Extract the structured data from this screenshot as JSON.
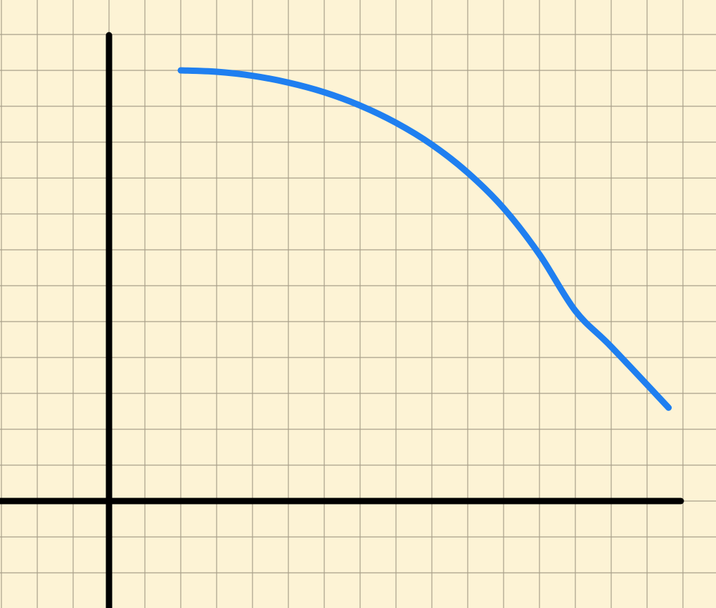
{
  "chart_data": {
    "type": "line",
    "title": "",
    "xlabel": "",
    "ylabel": "",
    "grid": true,
    "grid_step": 1,
    "xlim": [
      -3,
      16
    ],
    "ylim": [
      -3,
      14
    ],
    "axes_at_origin": true,
    "series": [
      {
        "color": "#1f7ff0",
        "x": [
          2,
          3,
          4,
          5,
          6,
          7,
          8,
          9,
          10,
          11,
          12,
          13,
          14,
          15.6
        ],
        "y": [
          12,
          11.96,
          11.85,
          11.66,
          11.39,
          11.02,
          10.54,
          9.93,
          9.15,
          8.16,
          6.87,
          5.3,
          4.3,
          2.6
        ]
      }
    ],
    "colors": {
      "background": "#fdf3d5",
      "grid": "#a8a08a",
      "axis": "#000000",
      "curve": "#1f7ff0"
    }
  }
}
